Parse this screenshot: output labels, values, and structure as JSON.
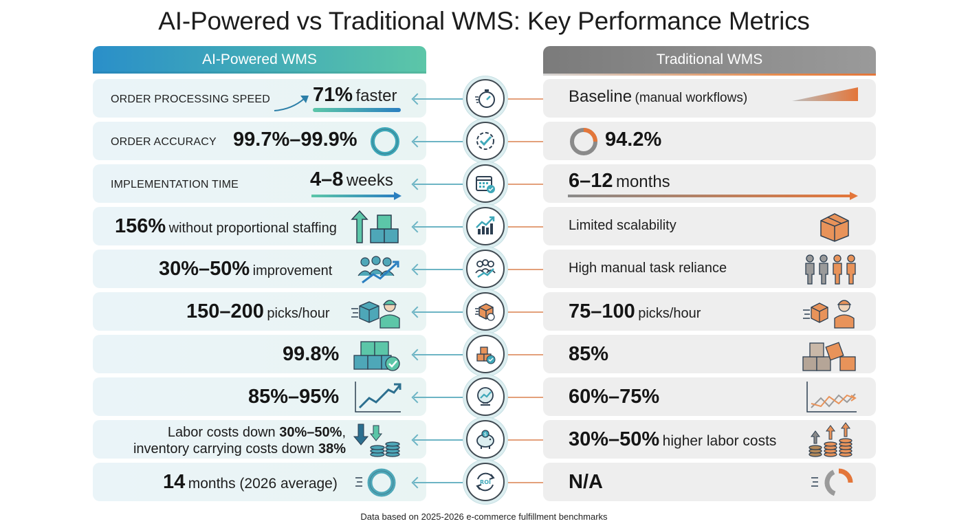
{
  "title": "AI-Powered vs Traditional WMS: Key Performance Metrics",
  "columns": {
    "ai": "AI-Powered WMS",
    "traditional": "Traditional WMS"
  },
  "rows": [
    {
      "label": "ORDER PROCESSING SPEED",
      "ai_big": "71%",
      "ai_small": "faster",
      "tr_big": "Baseline",
      "tr_small": "(manual workflows)",
      "hub_icon": "stopwatch-icon"
    },
    {
      "label": "ORDER ACCURACY",
      "ai_big": "99.7%–99.9%",
      "ai_small": "",
      "tr_big": "94.2%",
      "tr_small": "",
      "hub_icon": "target-check-icon"
    },
    {
      "label": "IMPLEMENTATION TIME",
      "ai_big": "4–8",
      "ai_small": "weeks",
      "tr_big": "6–12",
      "tr_small": "months",
      "hub_icon": "calendar-icon"
    },
    {
      "label": "",
      "ai_big": "156%",
      "ai_small": "without proportional staffing",
      "tr_big": "",
      "tr_small": "Limited scalability",
      "hub_icon": "growth-chart-icon"
    },
    {
      "label": "",
      "ai_big": "30%–50%",
      "ai_small": "improvement",
      "tr_big": "",
      "tr_small": "High manual task reliance",
      "hub_icon": "team-growth-icon"
    },
    {
      "label": "",
      "ai_big": "150–200",
      "ai_small": "picks/hour",
      "tr_big": "75–100",
      "tr_small": "picks/hour",
      "hub_icon": "box-pick-icon"
    },
    {
      "label": "",
      "ai_big": "99.8%",
      "ai_small": "",
      "tr_big": "85%",
      "tr_small": "",
      "hub_icon": "inventory-check-icon"
    },
    {
      "label": "",
      "ai_big": "85%–95%",
      "ai_small": "",
      "tr_big": "60%–75%",
      "tr_small": "",
      "hub_icon": "forecast-globe-icon"
    },
    {
      "label": "",
      "ai_line1_pre": "Labor costs down ",
      "ai_line1_big": "30%–50%",
      "ai_line1_post": ",",
      "ai_line2_pre": "inventory carrying costs down ",
      "ai_line2_big": "38%",
      "tr_big": "30%–50%",
      "tr_small": "higher labor costs",
      "hub_icon": "piggy-bank-icon"
    },
    {
      "label": "",
      "ai_big": "14",
      "ai_small": "months (2026 average)",
      "tr_big": "N/A",
      "tr_small": "",
      "hub_icon": "roi-cycle-icon"
    }
  ],
  "footer": "Data based on 2025-2026 e-commerce fulfillment benchmarks",
  "colors": {
    "ai_accent": "#3fa8b9",
    "traditional_accent": "#e3763a",
    "ai_gradient_start": "#2a8fc9",
    "ai_gradient_end": "#5cc6a8",
    "traditional_header": "#8a8a8a"
  }
}
